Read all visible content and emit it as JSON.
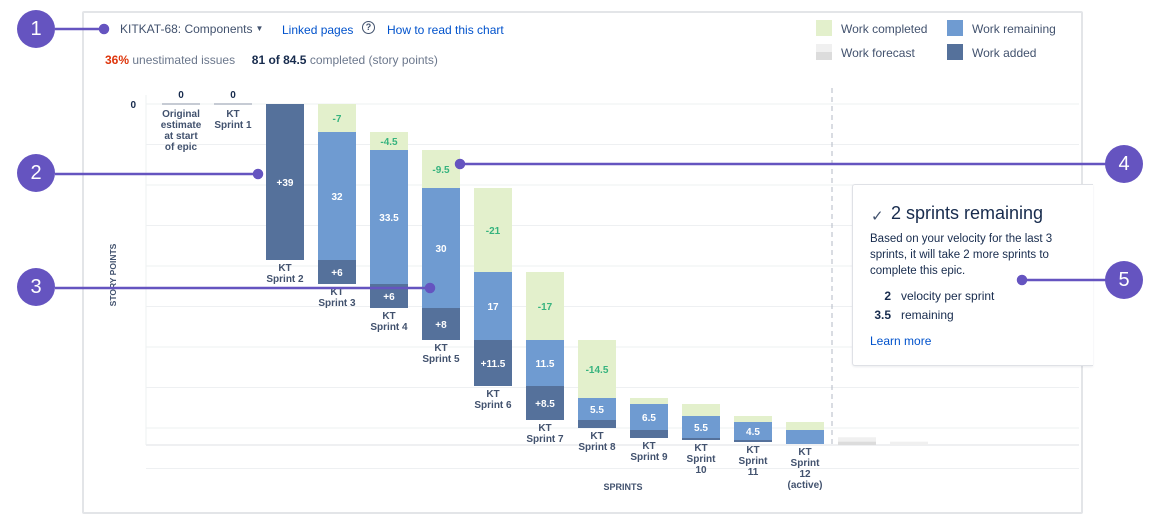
{
  "header": {
    "epic_selector": "KITKAT-68: Components",
    "linked_pages": "Linked pages",
    "help_icon": "?",
    "how_to_read": "How to read this chart"
  },
  "stats": {
    "unestimated_pct": "36%",
    "unestimated_text": "unestimated issues",
    "completed_value": "81 of 84.5",
    "completed_text": "completed (story points)"
  },
  "legend": {
    "work_completed": "Work completed",
    "work_remaining": "Work remaining",
    "work_forecast": "Work forecast",
    "work_added": "Work added"
  },
  "forecast_card": {
    "check": "✓",
    "title": "2 sprints remaining",
    "description": "Based on your velocity for the last 3 sprints, it will take 2 more sprints to complete this epic.",
    "velocity_value": "2",
    "velocity_label": "velocity per sprint",
    "remaining_value": "3.5",
    "remaining_label": "remaining",
    "learn_more": "Learn more"
  },
  "callouts": [
    "1",
    "2",
    "3",
    "4",
    "5"
  ],
  "colors": {
    "completed": "#e3f0cc",
    "remaining": "#6f9bd1",
    "added": "#55719b",
    "forecast": "#e8e8e8",
    "accent": "#6554c0",
    "link": "#0052cc",
    "danger": "#de350b"
  },
  "chart_data": {
    "type": "bar",
    "chart_kind": "release-burndown",
    "xlabel": "SPRINTS",
    "ylabel": "STORY POINTS",
    "ytick_label": "0",
    "categories": [
      [
        "Original",
        "estimate",
        "at start",
        "of epic"
      ],
      [
        "KT",
        "Sprint 1"
      ],
      [
        "KT",
        "Sprint 2"
      ],
      [
        "KT",
        "Sprint 3"
      ],
      [
        "KT",
        "Sprint 4"
      ],
      [
        "KT",
        "Sprint 5"
      ],
      [
        "KT",
        "Sprint 6"
      ],
      [
        "KT",
        "Sprint 7"
      ],
      [
        "KT",
        "Sprint 8"
      ],
      [
        "KT",
        "Sprint 9"
      ],
      [
        "KT",
        "Sprint",
        "10"
      ],
      [
        "KT",
        "Sprint",
        "11"
      ],
      [
        "KT",
        "Sprint",
        "12",
        "(active)"
      ]
    ],
    "top_labels": [
      "0",
      "0",
      null,
      null,
      null,
      null,
      null,
      null,
      null,
      null,
      null,
      null,
      null
    ],
    "series": [
      {
        "name": "Work completed",
        "values": [
          0,
          0,
          0,
          7,
          4.5,
          9.5,
          21,
          17,
          14.5,
          1.5,
          3,
          1.5,
          2
        ]
      },
      {
        "name": "Work remaining",
        "values": [
          0,
          0,
          0,
          32,
          33.5,
          30,
          17,
          11.5,
          5.5,
          6.5,
          5.5,
          4.5,
          3.5
        ]
      },
      {
        "name": "Work added",
        "values": [
          0,
          0,
          39,
          6,
          6,
          8,
          11.5,
          8.5,
          2,
          2,
          0.5,
          0.5,
          0
        ]
      }
    ],
    "bar_labels": {
      "completed": [
        null,
        null,
        null,
        "-7",
        "-4.5",
        "-9.5",
        "-21",
        "-17",
        "-14.5",
        null,
        null,
        null,
        null
      ],
      "remaining": [
        null,
        null,
        null,
        "32",
        "33.5",
        "30",
        "17",
        "11.5",
        "5.5",
        "6.5",
        "5.5",
        "4.5",
        null
      ],
      "added": [
        null,
        null,
        "+39",
        "+6",
        "+6",
        "+8",
        "+11.5",
        "+8.5",
        null,
        null,
        null,
        null,
        null
      ]
    },
    "forecast": [
      {
        "start": 3.5,
        "end": 1.5
      },
      {
        "start": 1.5,
        "end": 0
      }
    ],
    "ylim": [
      0,
      85
    ],
    "grid": true
  }
}
